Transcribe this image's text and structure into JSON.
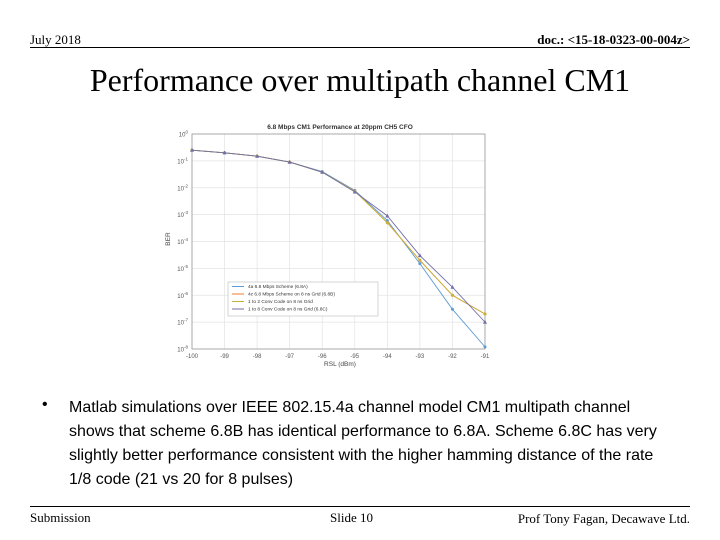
{
  "header": {
    "date": "July 2018",
    "doc": "doc.: <15-18-0323-00-004z>"
  },
  "slide_title": "Performance over multipath channel CM1",
  "bullet": {
    "marker": "•",
    "text": "Matlab simulations over IEEE 802.15.4a channel model CM1 multipath channel shows that scheme 6.8B has identical performance to 6.8A. Scheme 6.8C has very slightly better performance consistent with the higher hamming distance of the rate 1/8 code (21 vs 20 for 8 pulses)"
  },
  "footer": {
    "left": "Submission",
    "center": "Slide 10",
    "right": "Prof Tony Fagan,  Decawave Ltd."
  },
  "chart_data": {
    "type": "line",
    "title": "6.8 Mbps CM1 Performance at 20ppm CH5 CFO",
    "xlabel": "RSL (dBm)",
    "ylabel": "BER",
    "xlim": [
      -100,
      -91
    ],
    "ylog": true,
    "ylim": [
      1e-08,
      1
    ],
    "grid": true,
    "x_ticks": [
      "-100",
      "-99",
      "-98",
      "-97",
      "-96",
      "-95",
      "-94",
      "-93",
      "-92",
      "-91"
    ],
    "y_ticks": [
      {
        "base": "10",
        "exp": "0"
      },
      {
        "base": "10",
        "exp": "-1"
      },
      {
        "base": "10",
        "exp": "-2"
      },
      {
        "base": "10",
        "exp": "-3"
      },
      {
        "base": "10",
        "exp": "-4"
      },
      {
        "base": "10",
        "exp": "-5"
      },
      {
        "base": "10",
        "exp": "-6"
      },
      {
        "base": "10",
        "exp": "-7"
      },
      {
        "base": "10",
        "exp": "-8"
      }
    ],
    "legend_position": "lower-left",
    "x": [
      -100,
      -99,
      -98,
      -97,
      -96,
      -95,
      -94,
      -93,
      -92,
      -91
    ],
    "series": [
      {
        "name": "4a 6.8 Mbps Scheme (6.8A)",
        "color": "#5b9bd5",
        "marker": "circle",
        "values": [
          0.25,
          0.2,
          0.15,
          0.09,
          0.04,
          0.008,
          0.0006,
          1.5e-05,
          3e-07,
          1.2e-08
        ]
      },
      {
        "name": "4z 6.8 Mbps Scheme on 8 ns Grid (6.8B)",
        "color": "#ed7d31",
        "marker": "circle",
        "values": [
          0.25,
          0.2,
          0.15,
          0.09,
          0.038,
          0.0075,
          0.0005,
          2e-05,
          1e-06,
          2e-07
        ]
      },
      {
        "name": "1 to 2 Conv Code on 8 ns Grid",
        "color": "#c9b037",
        "marker": "circle",
        "values": [
          0.25,
          0.2,
          0.15,
          0.09,
          0.038,
          0.0075,
          0.0005,
          2e-05,
          1e-06,
          2e-07
        ]
      },
      {
        "name": "1 to 8 Conv Code on 8 ns Grid (6.8C)",
        "color": "#6f6fa8",
        "marker": "triangle",
        "values": [
          0.25,
          0.2,
          0.15,
          0.09,
          0.038,
          0.007,
          0.0009,
          3e-05,
          2e-06,
          1e-07
        ]
      }
    ]
  }
}
